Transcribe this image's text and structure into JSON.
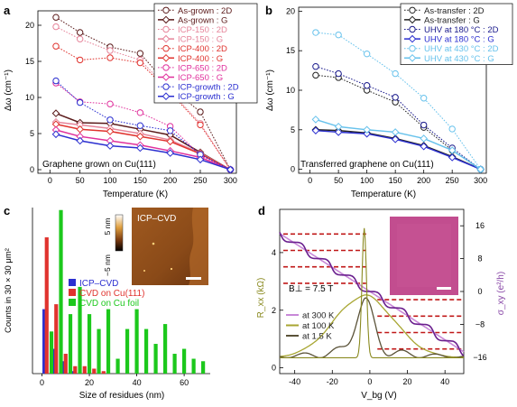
{
  "figure_colors": {
    "dark_brown": "#5b1a1a",
    "red": "#e0332e",
    "pink": "#e6849a",
    "magenta": "#e0309c",
    "blue": "#2b2fd0",
    "navy": "#1a1a8c",
    "light_blue": "#67c2ec",
    "dark_gray": "#222222",
    "green": "#1cc81c",
    "olive": "#a8a632",
    "violet": "#6a1f8e",
    "lavender": "#c888d8",
    "sample_pink": "#c24d8f",
    "dashed_red": "#c01818"
  },
  "chart_data": [
    {
      "panel_label": "a",
      "type": "line",
      "xlabel": "Temperature (K)",
      "ylabel": "Δω (cm⁻¹)",
      "xlim": [
        -20,
        310
      ],
      "ylim": [
        -0.5,
        22
      ],
      "xticks": [
        0,
        50,
        100,
        150,
        200,
        250,
        300
      ],
      "yticks": [
        0,
        5,
        10,
        15,
        20
      ],
      "annotation": "Graphene grown on Cu(111)",
      "legend_position": "top-right",
      "series": [
        {
          "name": "As-grown : 2D",
          "color": "#5b1a1a",
          "marker": "open-circle",
          "dashed": true,
          "x": [
            10,
            50,
            100,
            150,
            200,
            250,
            300
          ],
          "y": [
            21.1,
            19.0,
            17.0,
            16.1,
            11.4,
            8.0,
            0.0
          ]
        },
        {
          "name": "As-grown : G",
          "color": "#5b1a1a",
          "marker": "open-diamond",
          "dashed": false,
          "x": [
            10,
            50,
            100,
            150,
            200,
            250,
            300
          ],
          "y": [
            7.8,
            6.5,
            6.4,
            5.6,
            4.8,
            2.4,
            0.0
          ]
        },
        {
          "name": "ICP-150 : 2D",
          "color": "#e6849a",
          "marker": "open-circle",
          "dashed": true,
          "x": [
            10,
            50,
            100,
            150,
            200,
            250,
            300
          ],
          "y": [
            19.8,
            18.1,
            16.5,
            15.2,
            10.9,
            6.4,
            0.0
          ]
        },
        {
          "name": "ICP-150 : G",
          "color": "#e6849a",
          "marker": "open-diamond",
          "dashed": false,
          "x": [
            10,
            50,
            100,
            150,
            200,
            250,
            300
          ],
          "y": [
            6.6,
            6.2,
            5.7,
            5.0,
            4.1,
            2.3,
            0.0
          ]
        },
        {
          "name": "ICP-400 : 2D",
          "color": "#e0332e",
          "marker": "open-circle",
          "dashed": true,
          "x": [
            10,
            50,
            100,
            150,
            200,
            250,
            300
          ],
          "y": [
            17.1,
            15.2,
            15.5,
            14.8,
            10.7,
            6.2,
            0.0
          ]
        },
        {
          "name": "ICP-400 : G",
          "color": "#e0332e",
          "marker": "open-diamond",
          "dashed": false,
          "x": [
            10,
            50,
            100,
            150,
            200,
            250,
            300
          ],
          "y": [
            6.3,
            5.6,
            5.3,
            4.6,
            3.9,
            2.2,
            0.0
          ]
        },
        {
          "name": "ICP-650 : 2D",
          "color": "#e0309c",
          "marker": "open-circle",
          "dashed": true,
          "x": [
            10,
            50,
            100,
            150,
            200,
            250,
            300
          ],
          "y": [
            12.0,
            9.4,
            9.1,
            7.9,
            6.0,
            2.0,
            0.0
          ]
        },
        {
          "name": "ICP-650 : G",
          "color": "#e0309c",
          "marker": "open-diamond",
          "dashed": false,
          "x": [
            10,
            50,
            100,
            150,
            200,
            250,
            300
          ],
          "y": [
            5.5,
            4.6,
            4.0,
            3.4,
            2.6,
            1.7,
            0.0
          ]
        },
        {
          "name": "ICP-growth : 2D",
          "color": "#2b2fd0",
          "marker": "open-circle",
          "dashed": true,
          "x": [
            10,
            50,
            100,
            150,
            200,
            250,
            300
          ],
          "y": [
            12.3,
            9.3,
            6.9,
            6.1,
            5.4,
            2.1,
            0.0
          ]
        },
        {
          "name": "ICP-growth : G",
          "color": "#2b2fd0",
          "marker": "open-diamond",
          "dashed": false,
          "x": [
            10,
            50,
            100,
            150,
            200,
            250,
            300
          ],
          "y": [
            4.9,
            4.0,
            3.3,
            3.0,
            2.3,
            1.4,
            0.0
          ]
        }
      ]
    },
    {
      "panel_label": "b",
      "type": "line",
      "xlabel": "Temperature (K)",
      "ylabel": "Δω (cm⁻¹)",
      "xlim": [
        -20,
        310
      ],
      "ylim": [
        -0.5,
        20.5
      ],
      "xticks": [
        0,
        50,
        100,
        150,
        200,
        250,
        300
      ],
      "yticks": [
        0,
        5,
        10,
        15,
        20
      ],
      "annotation": "Transferred graphene on Cu(111)",
      "legend_position": "top-right",
      "series": [
        {
          "name": "As-transfer : 2D",
          "color": "#222222",
          "marker": "open-circle",
          "dashed": true,
          "x": [
            10,
            50,
            100,
            150,
            200,
            250,
            300
          ],
          "y": [
            11.9,
            11.6,
            10.0,
            8.5,
            5.3,
            2.4,
            0.0
          ]
        },
        {
          "name": "As-transfer : G",
          "color": "#222222",
          "marker": "open-diamond",
          "dashed": false,
          "x": [
            10,
            50,
            100,
            150,
            200,
            250,
            300
          ],
          "y": [
            5.0,
            4.9,
            4.6,
            3.9,
            3.0,
            1.6,
            0.0
          ]
        },
        {
          "name": "UHV at 180 °C : 2D",
          "color": "#1a1a8c",
          "marker": "open-circle",
          "dashed": true,
          "x": [
            10,
            50,
            100,
            150,
            200,
            250,
            300
          ],
          "y": [
            13.0,
            12.1,
            10.6,
            9.1,
            5.6,
            2.7,
            0.0
          ]
        },
        {
          "name": "UHV at 180 °C : G",
          "color": "#2b2fd0",
          "marker": "open-diamond",
          "dashed": false,
          "x": [
            10,
            50,
            100,
            150,
            200,
            250,
            300
          ],
          "y": [
            4.9,
            4.7,
            4.5,
            3.8,
            2.9,
            1.5,
            0.0
          ]
        },
        {
          "name": "UHV at 430 °C : 2D",
          "color": "#67c2ec",
          "marker": "open-circle",
          "dashed": true,
          "x": [
            10,
            50,
            100,
            150,
            200,
            250,
            300
          ],
          "y": [
            17.3,
            17.0,
            14.6,
            12.1,
            9.0,
            5.1,
            0.0
          ]
        },
        {
          "name": "UHV at 430 °C : G",
          "color": "#67c2ec",
          "marker": "open-diamond",
          "dashed": false,
          "x": [
            10,
            50,
            100,
            150,
            200,
            250,
            300
          ],
          "y": [
            6.3,
            5.4,
            5.0,
            4.7,
            3.9,
            2.4,
            0.0
          ]
        }
      ]
    },
    {
      "panel_label": "c",
      "type": "bar",
      "xlabel": "Size of residues (nm)",
      "ylabel": "Counts in 30 × 30 μm²",
      "xlim": [
        -4,
        71
      ],
      "ylim": [
        0,
        67
      ],
      "xticks": [
        0,
        20,
        40,
        60
      ],
      "legend_position": "middle-left",
      "series": [
        {
          "name": "ICP–CVD",
          "color": "#2b2fd0",
          "x": [
            1,
            5,
            9,
            13
          ],
          "values": [
            26,
            10,
            5,
            1
          ]
        },
        {
          "name": "CVD on Cu(111)",
          "color": "#e0332e",
          "x": [
            2,
            6,
            10,
            14,
            18,
            22,
            26
          ],
          "values": [
            55,
            28,
            8,
            3,
            3,
            2,
            1
          ]
        },
        {
          "name": "CVD on Cu foil",
          "color": "#1cc81c",
          "x": [
            4,
            8,
            12,
            16,
            20,
            24,
            28,
            32,
            36,
            40,
            44,
            48,
            52,
            56,
            60,
            64,
            68
          ],
          "values": [
            17,
            66,
            24,
            35,
            24,
            18,
            26,
            6,
            18,
            26,
            18,
            12,
            20,
            8,
            10,
            6,
            5
          ]
        }
      ],
      "inset": {
        "label": "ICP–CVD",
        "colorbar_max": "5 nm",
        "colorbar_min": "−5 nm"
      }
    },
    {
      "panel_label": "d",
      "type": "line",
      "xlabel": "V_bg (V)",
      "ylabel_left": "R_xx (kΩ)",
      "ylabel_right": "σ_xy (e²/h)",
      "xlim": [
        -48,
        50
      ],
      "ylim_left": [
        -0.2,
        5.5
      ],
      "ylim_right": [
        -20,
        20
      ],
      "xticks": [
        -40,
        -20,
        0,
        20,
        40
      ],
      "yticks_left": [
        0,
        2,
        4
      ],
      "yticks_right": [
        -16,
        -8,
        0,
        8,
        16
      ],
      "field_label": "B⊥ = 7.5 T",
      "legend_position": "bottom-left",
      "plateaus": [
        -14,
        -10,
        -6,
        -2,
        2,
        6,
        10,
        14
      ],
      "series": [
        {
          "name": "at 300 K",
          "color": "#c888d8",
          "quantity": "R_xx"
        },
        {
          "name": "at 100 K",
          "color": "#a8a632",
          "quantity": "R_xx"
        },
        {
          "name": "at 1.5 K",
          "color": "#5a5238",
          "quantity": "R_xx"
        }
      ]
    }
  ]
}
